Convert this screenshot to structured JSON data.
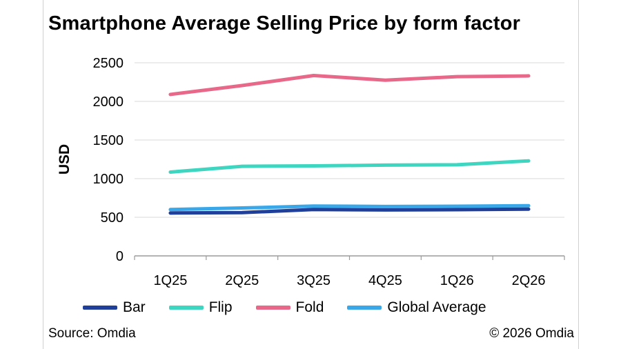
{
  "chart_data": {
    "type": "line",
    "title": "Smartphone Average Selling Price by form factor",
    "ylabel": "USD",
    "xlabel": "",
    "categories": [
      "1Q25",
      "2Q25",
      "3Q25",
      "4Q25",
      "1Q26",
      "2Q26"
    ],
    "ylim": [
      0,
      2500
    ],
    "yticks": [
      0,
      500,
      1000,
      1500,
      2000,
      2500
    ],
    "grid": true,
    "legend_position": "bottom",
    "series": [
      {
        "name": "Bar",
        "color": "#1f3f9a",
        "values": [
          555,
          560,
          600,
          595,
          598,
          605
        ]
      },
      {
        "name": "Flip",
        "color": "#3ed6c0",
        "values": [
          1085,
          1160,
          1165,
          1175,
          1180,
          1230
        ]
      },
      {
        "name": "Fold",
        "color": "#e8688a",
        "values": [
          2090,
          2205,
          2335,
          2275,
          2320,
          2330
        ]
      },
      {
        "name": "Global Average",
        "color": "#3aa8e8",
        "values": [
          600,
          620,
          645,
          640,
          643,
          650
        ]
      }
    ]
  },
  "footer": {
    "source": "Source: Omdia",
    "copyright": "© 2026 Omdia"
  }
}
